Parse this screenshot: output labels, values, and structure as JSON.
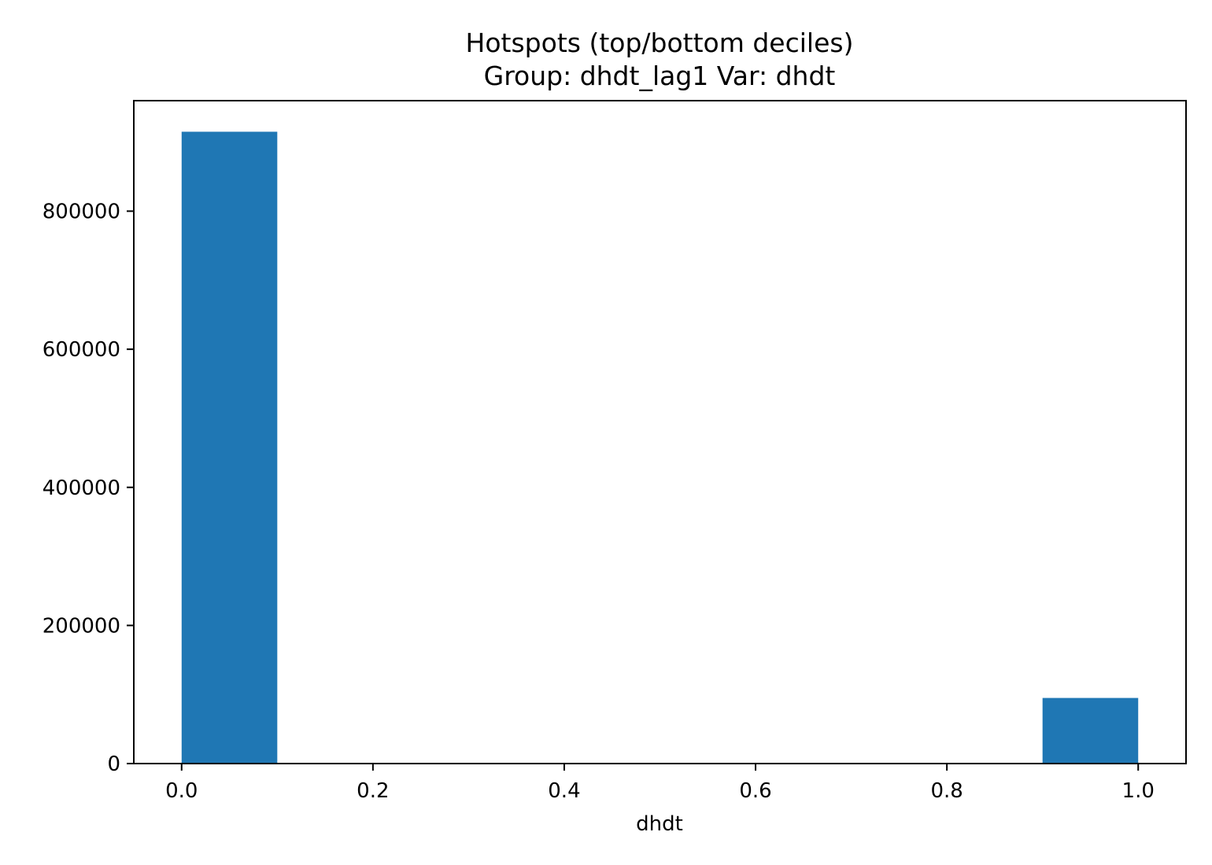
{
  "chart_data": {
    "type": "bar",
    "title": "Hotspots (top/bottom deciles)",
    "subtitle": "Group: dhdt_lag1  Var: dhdt",
    "xlabel": "dhdt",
    "ylabel": "",
    "xlim": [
      -0.05,
      1.05
    ],
    "ylim": [
      0,
      960000
    ],
    "xticks": [
      0.0,
      0.2,
      0.4,
      0.6,
      0.8,
      1.0
    ],
    "xtick_labels": [
      "0.0",
      "0.2",
      "0.4",
      "0.6",
      "0.8",
      "1.0"
    ],
    "yticks": [
      0,
      200000,
      400000,
      600000,
      800000
    ],
    "ytick_labels": [
      "0",
      "200000",
      "400000",
      "600000",
      "800000"
    ],
    "bins": [
      {
        "x0": 0.0,
        "x1": 0.1,
        "value": 915000
      },
      {
        "x0": 0.9,
        "x1": 1.0,
        "value": 95000
      }
    ],
    "bar_color": "#1f77b4",
    "grid": false
  }
}
